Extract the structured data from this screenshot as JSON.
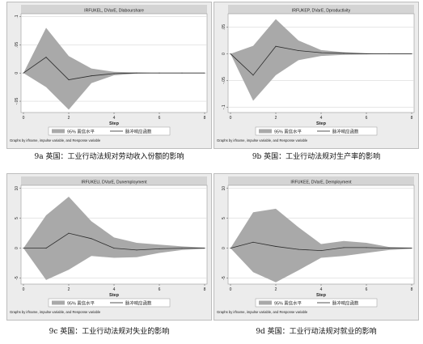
{
  "legend": {
    "band": "95% 置信水平",
    "line": "脉冲响应函数"
  },
  "note": "Graphs by irfname, impulse variable, and Response variable",
  "xlabel": "Step",
  "chart_data": [
    {
      "type": "area",
      "title": "IRFUKEL, DVarE, Dlabourshare",
      "caption": "9a 英国：工业行动法规对劳动收入份额的影响",
      "xlabel": "Step",
      "x": [
        0,
        1,
        2,
        3,
        4,
        5,
        6,
        7,
        8
      ],
      "xticks": [
        "0",
        "2",
        "4",
        "6",
        "8"
      ],
      "ylim": [
        -0.07,
        0.105
      ],
      "yticks": [
        {
          "v": 0.1,
          "l": ".1"
        },
        {
          "v": 0.05,
          "l": ".05"
        },
        {
          "v": 0,
          "l": "0"
        },
        {
          "v": -0.05,
          "l": "-.05"
        }
      ],
      "series": [
        {
          "role": "irf",
          "values": [
            0,
            0.028,
            -0.012,
            -0.005,
            -0.001,
            0,
            0,
            0,
            0
          ]
        },
        {
          "role": "ci_upper",
          "values": [
            0,
            0.08,
            0.03,
            0.008,
            0.002,
            0.001,
            0,
            0,
            0
          ]
        },
        {
          "role": "ci_lower",
          "values": [
            0,
            -0.025,
            -0.065,
            -0.018,
            -0.004,
            -0.001,
            0,
            0,
            0
          ]
        }
      ]
    },
    {
      "type": "area",
      "title": "IRFUKEP, DVarE, Dproductivity",
      "caption": "9b 英国：工业行动法规对生产率的影响",
      "xlabel": "Step",
      "x": [
        0,
        1,
        2,
        3,
        4,
        5,
        6,
        7,
        8
      ],
      "xticks": [
        "0",
        "2",
        "4",
        "6",
        "8"
      ],
      "ylim": [
        -0.11,
        0.075
      ],
      "yticks": [
        {
          "v": 0.05,
          "l": ".05"
        },
        {
          "v": 0,
          "l": "0"
        },
        {
          "v": -0.05,
          "l": "-.05"
        },
        {
          "v": -0.1,
          "l": "-.1"
        }
      ],
      "series": [
        {
          "role": "irf",
          "values": [
            0,
            -0.04,
            0.014,
            0.006,
            0.002,
            0.001,
            0,
            0,
            0
          ]
        },
        {
          "role": "ci_upper",
          "values": [
            0,
            0.015,
            0.065,
            0.025,
            0.007,
            0.003,
            0.001,
            0,
            0
          ]
        },
        {
          "role": "ci_lower",
          "values": [
            0,
            -0.088,
            -0.04,
            -0.012,
            -0.004,
            -0.002,
            -0.001,
            0,
            0
          ]
        }
      ]
    },
    {
      "type": "area",
      "title": "IRFUKEU, DVarE, Dunemployment",
      "caption": "9c 英国：工业行动法规对失业的影响",
      "xlabel": "Step",
      "x": [
        0,
        1,
        2,
        3,
        4,
        5,
        6,
        7,
        8
      ],
      "xticks": [
        "0",
        "2",
        "4",
        "6",
        "8"
      ],
      "ylim": [
        -6,
        10.5
      ],
      "yticks": [
        {
          "v": 10,
          "l": "10"
        },
        {
          "v": 5,
          "l": "5"
        },
        {
          "v": 0,
          "l": "0"
        },
        {
          "v": -5,
          "l": "-5"
        }
      ],
      "series": [
        {
          "role": "irf",
          "values": [
            0,
            0,
            2.5,
            1.6,
            0,
            -0.3,
            -0.1,
            0,
            0
          ]
        },
        {
          "role": "ci_upper",
          "values": [
            0,
            5.5,
            8.6,
            4.5,
            1.8,
            0.9,
            0.6,
            0.3,
            0.1
          ]
        },
        {
          "role": "ci_lower",
          "values": [
            0,
            -5.3,
            -3.6,
            -1.3,
            -1.6,
            -1.5,
            -0.8,
            -0.3,
            -0.1
          ]
        }
      ]
    },
    {
      "type": "area",
      "title": "IRFUKEE, DVarE, Demployment",
      "caption": "9d 英国：工业行动法规对就业的影响",
      "xlabel": "Step",
      "x": [
        0,
        1,
        2,
        3,
        4,
        5,
        6,
        7,
        8
      ],
      "xticks": [
        "0",
        "2",
        "4",
        "6",
        "8"
      ],
      "ylim": [
        -6,
        10.5
      ],
      "yticks": [
        {
          "v": 10,
          "l": "10"
        },
        {
          "v": 5,
          "l": "5"
        },
        {
          "v": 0,
          "l": "0"
        },
        {
          "v": -5,
          "l": "-5"
        }
      ],
      "series": [
        {
          "role": "irf",
          "values": [
            0,
            1,
            0.3,
            -0.2,
            -0.4,
            0.1,
            0.1,
            0,
            0
          ]
        },
        {
          "role": "ci_upper",
          "values": [
            0,
            6,
            6.6,
            3.5,
            0.7,
            1.2,
            0.9,
            0.2,
            0.1
          ]
        },
        {
          "role": "ci_lower",
          "values": [
            0,
            -4,
            -5.7,
            -3.7,
            -1.6,
            -1.3,
            -0.8,
            -0.3,
            -0.1
          ]
        }
      ]
    }
  ]
}
